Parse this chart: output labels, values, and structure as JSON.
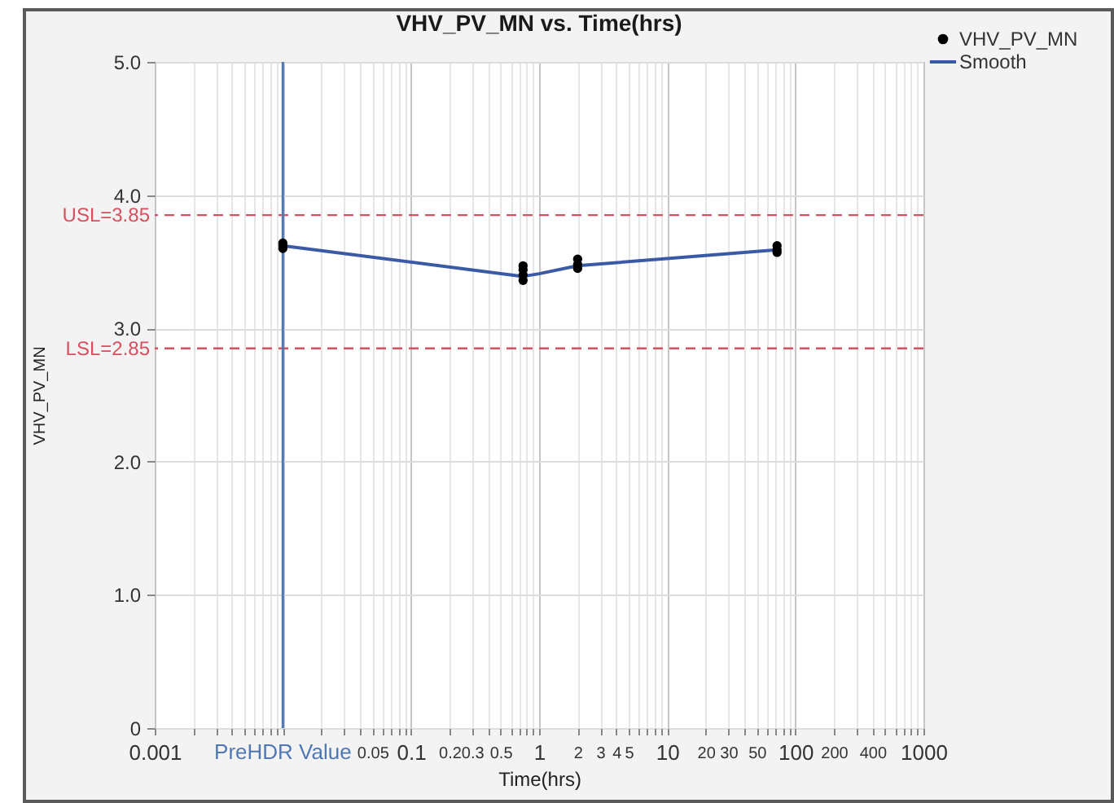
{
  "chart_data": {
    "type": "scatter",
    "title": "VHV_PV_MN vs. Time(hrs)",
    "xlabel": "Time(hrs)",
    "ylabel": "VHV_PV_MN",
    "log": "x",
    "xlim": [
      0.001,
      1000
    ],
    "ylim": [
      0,
      5
    ],
    "xticks": [
      0.001,
      {
        "value": 0.002,
        "label": null
      },
      {
        "value": 0.003,
        "label": null
      },
      {
        "value": 0.004,
        "label": null
      },
      {
        "value": 0.005,
        "label": null
      },
      {
        "value": 0.006,
        "label": null
      },
      {
        "value": 0.007,
        "label": null
      },
      {
        "value": 0.008,
        "label": null
      },
      {
        "value": 0.009,
        "label": null
      },
      {
        "value": 0.01,
        "label": null
      },
      {
        "value": 0.02,
        "label": null
      },
      {
        "value": 0.03,
        "label": null
      },
      {
        "value": 0.04,
        "label": null
      },
      0.05,
      {
        "value": 0.06,
        "label": null
      },
      {
        "value": 0.07,
        "label": null
      },
      {
        "value": 0.08,
        "label": null
      },
      {
        "value": 0.09,
        "label": null
      },
      0.1,
      0.2,
      0.3,
      {
        "value": 0.4,
        "label": null
      },
      0.5,
      {
        "value": 0.6,
        "label": null
      },
      {
        "value": 0.7,
        "label": null
      },
      {
        "value": 0.8,
        "label": null
      },
      {
        "value": 0.9,
        "label": null
      },
      1,
      2,
      3,
      4,
      5,
      {
        "value": 6,
        "label": null
      },
      {
        "value": 7,
        "label": null
      },
      {
        "value": 8,
        "label": null
      },
      {
        "value": 9,
        "label": null
      },
      10,
      20,
      30,
      {
        "value": 40,
        "label": null
      },
      50,
      {
        "value": 60,
        "label": null
      },
      {
        "value": 70,
        "label": null
      },
      {
        "value": 80,
        "label": null
      },
      {
        "value": 90,
        "label": null
      },
      100,
      200,
      {
        "value": 300,
        "label": null
      },
      400,
      {
        "value": 500,
        "label": null
      },
      {
        "value": 600,
        "label": null
      },
      {
        "value": 700,
        "label": null
      },
      {
        "value": 800,
        "label": null
      },
      {
        "value": 900,
        "label": null
      },
      1000
    ],
    "yticks": [
      0,
      {
        "value": 1,
        "label": "1.0"
      },
      {
        "value": 2,
        "label": "2.0"
      },
      {
        "value": 3,
        "label": "3.0"
      },
      {
        "value": 4,
        "label": "4.0"
      },
      {
        "value": 5,
        "label": "5.0"
      }
    ],
    "grid": true,
    "legend": "top right",
    "series": [
      {
        "name": "VHV_PV_MN",
        "marker": "circle",
        "color": "#000000",
        "x": [
          0.01,
          0.01,
          0.01,
          0.75,
          0.75,
          0.75,
          0.75,
          2,
          2,
          2,
          72,
          72,
          72
        ],
        "values": [
          3.6,
          3.62,
          3.64,
          3.36,
          3.4,
          3.44,
          3.47,
          3.45,
          3.48,
          3.52,
          3.57,
          3.59,
          3.62
        ]
      },
      {
        "name": "Smooth",
        "type": "line",
        "color": "#3b5aa6",
        "x": [
          0.01,
          0.75,
          1,
          2,
          72
        ],
        "values": [
          3.62,
          3.39,
          3.41,
          3.47,
          3.59
        ]
      }
    ],
    "ref_lines": [
      {
        "axis": "y",
        "value": 3.85,
        "label": "USL=3.85",
        "color": "#d6505f",
        "line_style": "dashed"
      },
      {
        "axis": "y",
        "value": 2.85,
        "label": "LSL=2.85",
        "color": "#d6505f",
        "line_style": "dashed"
      },
      {
        "axis": "x",
        "value": 0.01,
        "label": "PreHDR Value",
        "color": "#4f77b4",
        "line_style": "solid"
      }
    ]
  }
}
